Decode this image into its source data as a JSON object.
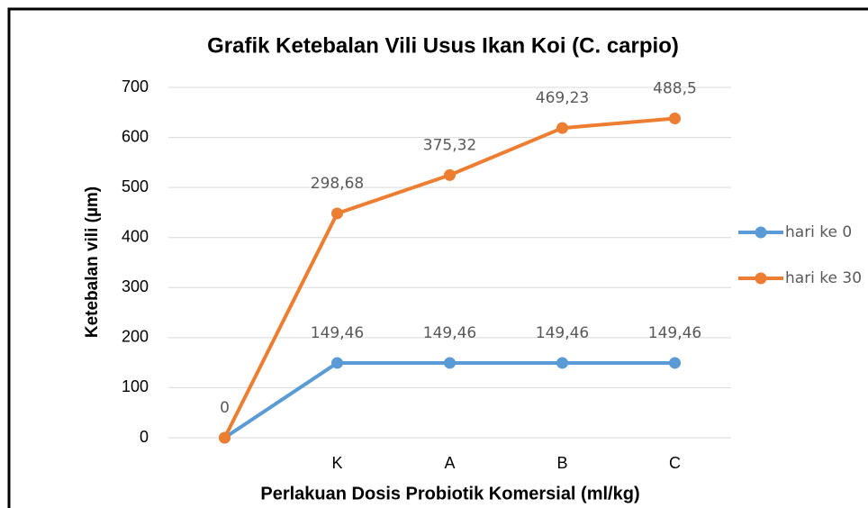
{
  "chart_data": {
    "type": "line",
    "stacked": true,
    "title": "Grafik Ketebalan Vili Usus Ikan Koi (C. carpio)",
    "x_label": "Perlakuan Dosis Probiotik Komersial (ml/kg)",
    "y_label": "Ketebalan vili (µm)",
    "categories": [
      null,
      "K",
      "A",
      "B",
      "C"
    ],
    "series": [
      {
        "name": "hari ke 0",
        "color": "#5b9bd5",
        "values": [
          0,
          149.46,
          149.46,
          149.46,
          149.46
        ],
        "value_labels": [
          null,
          "149,46",
          "149,46",
          "149,46",
          "149,46"
        ]
      },
      {
        "name": "hari ke 30",
        "color": "#ed7d31",
        "values": [
          0,
          298.68,
          375.32,
          469.23,
          488.5
        ],
        "value_labels": [
          "0",
          "298,68",
          "375,32",
          "469,23",
          "488,5"
        ]
      }
    ],
    "ylim": [
      0,
      700
    ],
    "yticks": [
      0,
      100,
      200,
      300,
      400,
      500,
      600,
      700
    ],
    "grid": true,
    "legend": "right"
  }
}
